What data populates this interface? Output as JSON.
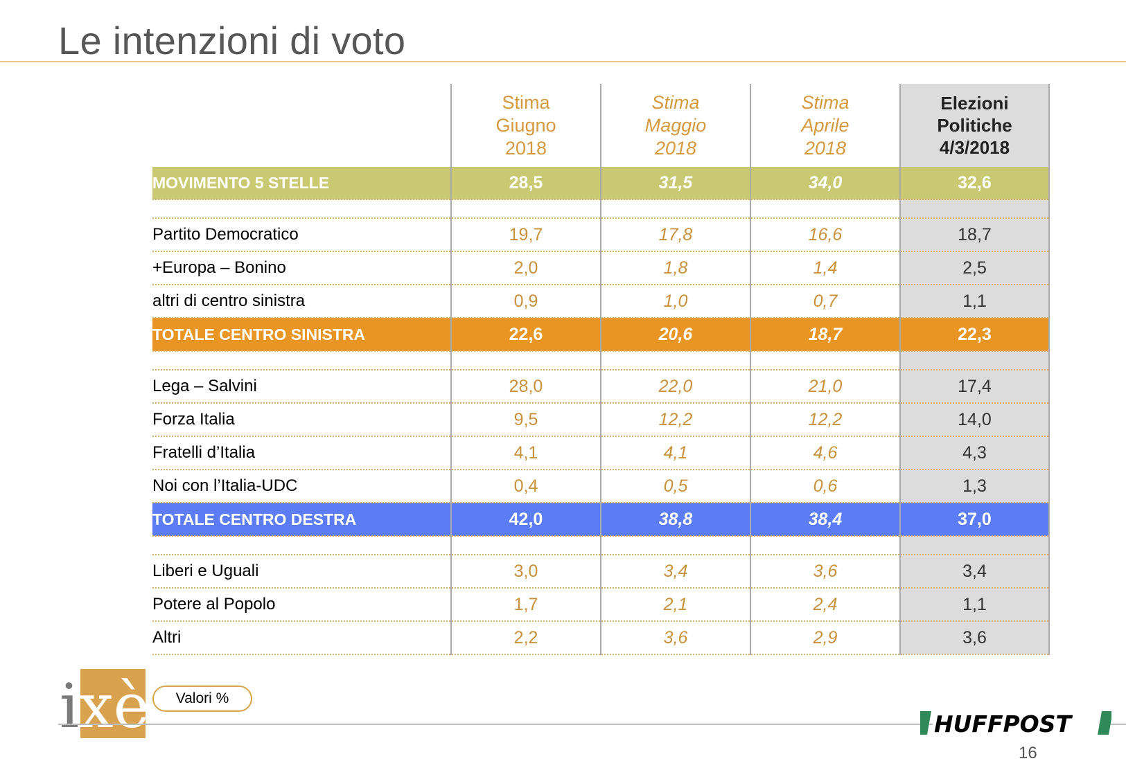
{
  "title": "Le intenzioni di voto",
  "chart_data": {
    "type": "table",
    "columns": [
      {
        "lines": [
          "Stima",
          "Giugno",
          "2018"
        ],
        "style": "current"
      },
      {
        "lines": [
          "Stima",
          "Maggio",
          "2018"
        ],
        "style": "previous"
      },
      {
        "lines": [
          "Stima",
          "Aprile",
          "2018"
        ],
        "style": "previous"
      },
      {
        "lines": [
          "Elezioni",
          "Politiche",
          "4/3/2018"
        ],
        "style": "election"
      }
    ],
    "rows": [
      {
        "label": "MOVIMENTO 5 STELLE",
        "kind": "m5s",
        "values": [
          "28,5",
          "31,5",
          "34,0",
          "32,6"
        ]
      },
      {
        "kind": "spacer"
      },
      {
        "label": "Partito Democratico",
        "kind": "party",
        "values": [
          "19,7",
          "17,8",
          "16,6",
          "18,7"
        ]
      },
      {
        "label": "+Europa – Bonino",
        "kind": "party",
        "values": [
          "2,0",
          "1,8",
          "1,4",
          "2,5"
        ]
      },
      {
        "label": "altri di centro sinistra",
        "kind": "party",
        "values": [
          "0,9",
          "1,0",
          "0,7",
          "1,1"
        ]
      },
      {
        "label": "TOTALE CENTRO SINISTRA",
        "kind": "sx",
        "values": [
          "22,6",
          "20,6",
          "18,7",
          "22,3"
        ]
      },
      {
        "kind": "spacer"
      },
      {
        "label": "Lega – Salvini",
        "kind": "party",
        "values": [
          "28,0",
          "22,0",
          "21,0",
          "17,4"
        ]
      },
      {
        "label": "Forza Italia",
        "kind": "party",
        "values": [
          "9,5",
          "12,2",
          "12,2",
          "14,0"
        ]
      },
      {
        "label": "Fratelli d’Italia",
        "kind": "party",
        "values": [
          "4,1",
          "4,1",
          "4,6",
          "4,3"
        ]
      },
      {
        "label": "Noi con l’Italia-UDC",
        "kind": "party",
        "values": [
          "0,4",
          "0,5",
          "0,6",
          "1,3"
        ]
      },
      {
        "label": "TOTALE CENTRO DESTRA",
        "kind": "dx",
        "values": [
          "42,0",
          "38,8",
          "38,4",
          "37,0"
        ]
      },
      {
        "kind": "spacer"
      },
      {
        "label": "Liberi e Uguali",
        "kind": "party",
        "values": [
          "3,0",
          "3,4",
          "3,6",
          "3,4"
        ]
      },
      {
        "label": "Potere al Popolo",
        "kind": "party",
        "values": [
          "1,7",
          "2,1",
          "2,4",
          "1,1"
        ]
      },
      {
        "label": "Altri",
        "kind": "party",
        "values": [
          "2,2",
          "3,6",
          "2,9",
          "3,6"
        ]
      }
    ],
    "colors": {
      "m5s": "#c8c970",
      "centro_sinistra": "#e89524",
      "centro_destra": "#5b7cf5",
      "election_column": "#dcdcdc",
      "accent": "#c8913b"
    }
  },
  "footer": {
    "logo_text": "ixè",
    "valori_label": "Valori %",
    "brand": "HUFFPOST",
    "page_number": "16"
  }
}
